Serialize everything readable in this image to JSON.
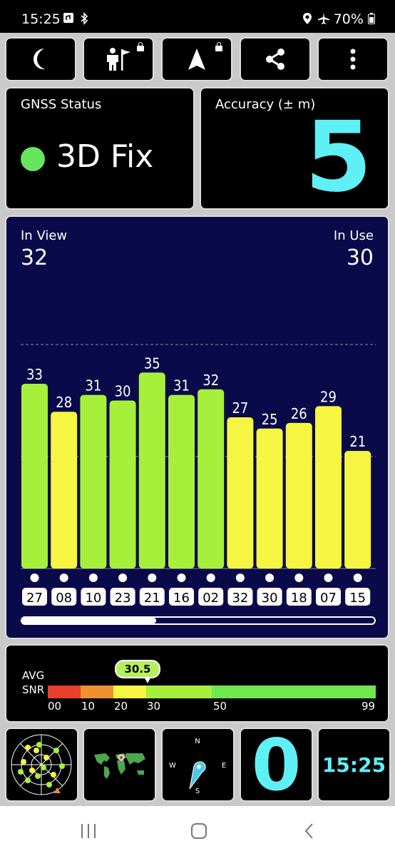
{
  "status_bar": {
    "time": "15:25",
    "battery": "70%"
  },
  "toolbar": {
    "icons": [
      "moon-icon",
      "person-flag-icon",
      "navigation-arrow-icon",
      "share-icon",
      "more-vert-icon"
    ]
  },
  "gnss": {
    "label": "GNSS Status",
    "fix": "3D Fix",
    "fix_color": "#66e65e"
  },
  "accuracy": {
    "label": "Accuracy (± m)",
    "value": "5"
  },
  "satellites": {
    "in_view_label": "In View",
    "in_view": "32",
    "in_use_label": "In Use",
    "in_use": "30",
    "scroll_fraction": 0.38
  },
  "chart_data": {
    "type": "bar",
    "categories": [
      "27",
      "08",
      "10",
      "23",
      "21",
      "16",
      "02",
      "32",
      "30",
      "18",
      "07",
      "15"
    ],
    "values": [
      33,
      28,
      31,
      30,
      35,
      31,
      32,
      27,
      25,
      26,
      29,
      21
    ],
    "colors": [
      "#a6f03c",
      "#f5f542",
      "#a6f03c",
      "#a6f03c",
      "#a6f03c",
      "#a6f03c",
      "#a6f03c",
      "#f5f542",
      "#f5f542",
      "#f5f542",
      "#f5f542",
      "#f5f542"
    ],
    "ylim": [
      0,
      60
    ]
  },
  "snr": {
    "label_line1": "AVG",
    "label_line2": "SNR",
    "avg": "30.5",
    "ticks": [
      "00",
      "10",
      "20",
      "30",
      "50",
      "99"
    ],
    "segments": [
      "#e8402a",
      "#f0902e",
      "#f5f542",
      "#a6f03c",
      "#6ee84e"
    ]
  },
  "bottom": {
    "count": "0",
    "clock": "15:25",
    "compass": {
      "n": "N",
      "e": "E",
      "s": "S",
      "w": "W"
    }
  }
}
